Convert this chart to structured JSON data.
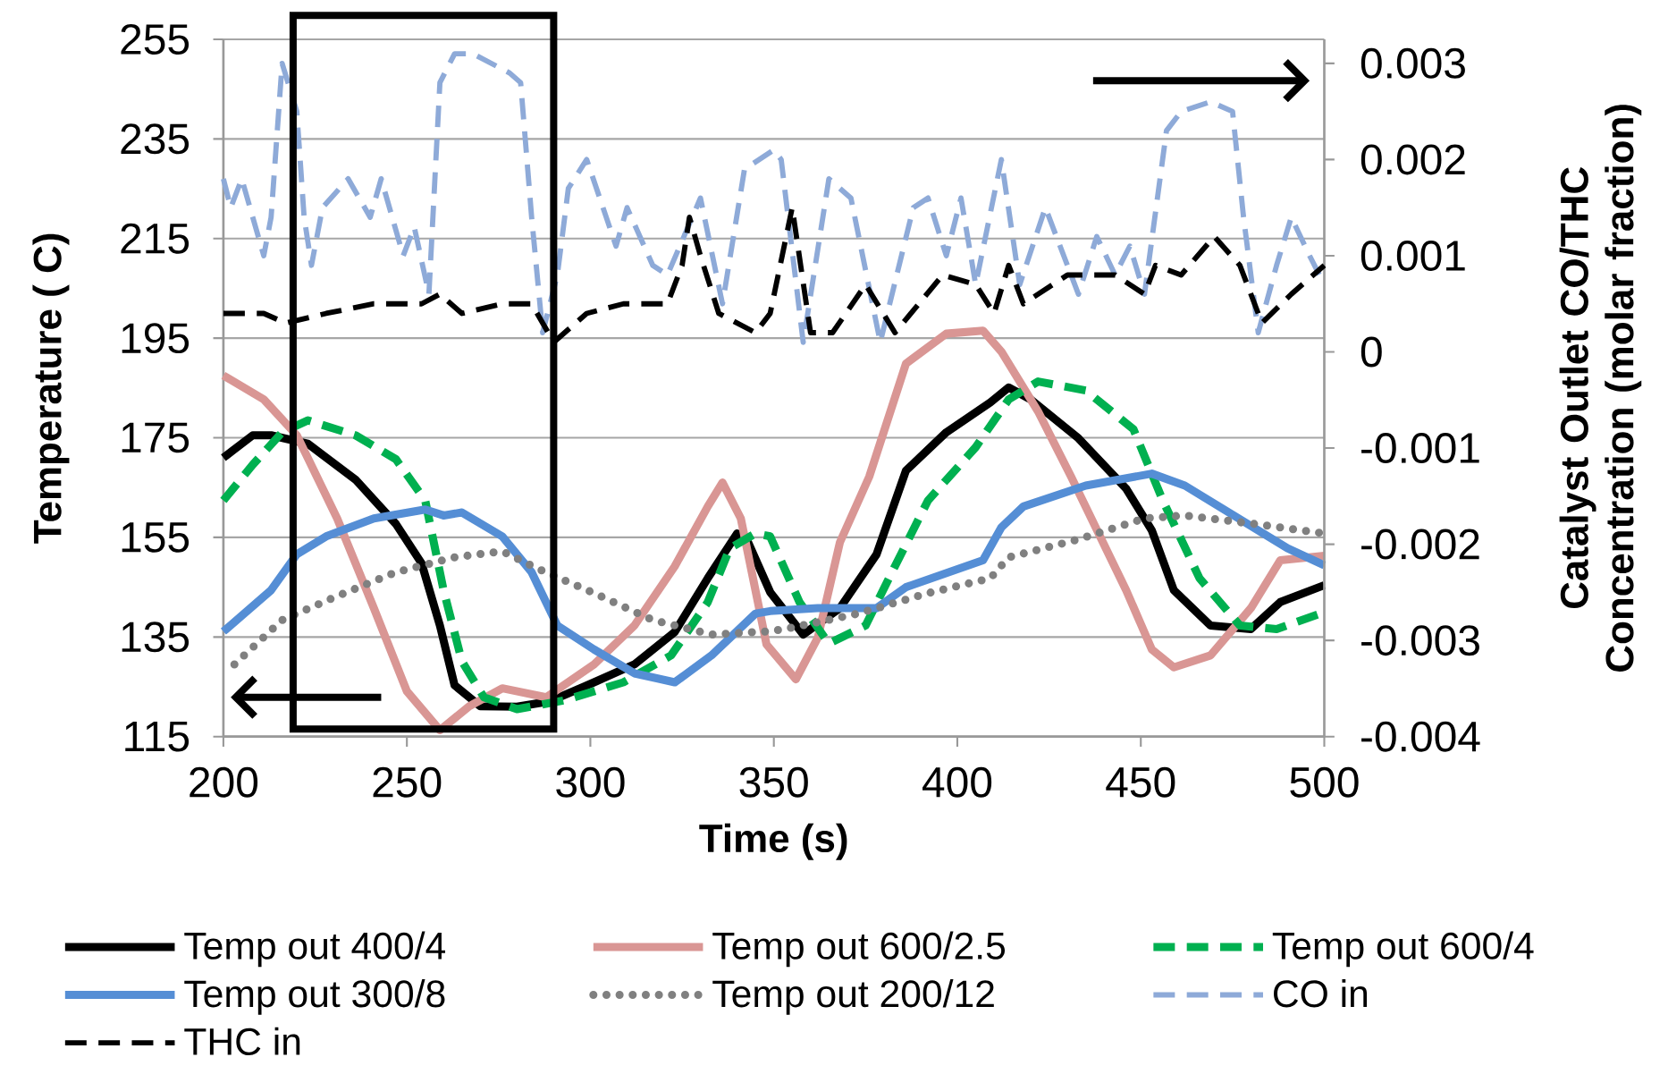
{
  "chart_data": {
    "type": "line",
    "xlabel": "Time (s)",
    "ylabel": "Temperature ( C)",
    "y2label": "Catalyst Outlet CO/THC Concentration (molar fraction)",
    "xlim": [
      200,
      500
    ],
    "xticks": [
      200,
      250,
      300,
      350,
      400,
      450,
      500
    ],
    "ylim": [
      115,
      255
    ],
    "yticks": [
      115,
      135,
      155,
      175,
      195,
      215,
      235,
      255
    ],
    "y2lim": [
      -0.004,
      0.00325
    ],
    "y2ticks": [
      -0.004,
      -0.003,
      -0.002,
      -0.001,
      0,
      0.001,
      0.002,
      0.003
    ],
    "grid": "y",
    "legend": "bottom",
    "series": [
      {
        "name": "Temp out 400/4",
        "color": "#000000",
        "line_style": "solid",
        "x": [
          200,
          208,
          213,
          223,
          236,
          247,
          254,
          259,
          263,
          270,
          280,
          289,
          301,
          312,
          323,
          332,
          340,
          343,
          349,
          358,
          368,
          378,
          386,
          397,
          409,
          414,
          420,
          433,
          446,
          453,
          459,
          469,
          480,
          488,
          500
        ],
        "values": [
          171,
          175.5,
          175.5,
          173.8,
          166.6,
          157.7,
          149.8,
          137.3,
          125.3,
          121.1,
          121,
          122.1,
          125.9,
          129.5,
          136,
          146.8,
          155.8,
          154,
          144,
          135.5,
          140.8,
          151.6,
          168.4,
          176.1,
          182.1,
          185.1,
          182.7,
          174.9,
          164.8,
          156.4,
          144.4,
          137.3,
          136.6,
          142,
          145.4
        ]
      },
      {
        "name": "Temp out 600/2.5",
        "color": "#d99694",
        "line_style": "solid",
        "x": [
          200,
          211,
          220,
          231,
          241,
          250,
          259,
          267,
          276,
          288,
          301,
          312,
          323,
          332,
          336,
          341,
          348,
          356,
          362,
          368,
          376,
          386,
          397,
          407,
          412,
          422,
          431,
          446,
          453,
          459,
          469,
          480,
          488,
          500
        ],
        "values": [
          187.5,
          182.7,
          175.5,
          158.8,
          140.8,
          124.1,
          116.3,
          121.1,
          124.7,
          122.9,
          129.5,
          137.3,
          149.2,
          161.2,
          166,
          158.8,
          133.5,
          126.5,
          134.9,
          154,
          167.2,
          189.9,
          195.9,
          196.5,
          192.3,
          180.3,
          167.2,
          144.4,
          132.5,
          128.9,
          131.3,
          140.8,
          150.4,
          151.3
        ]
      },
      {
        "name": "Temp out 600/4",
        "color": "#00b050",
        "line_style": "dashed",
        "x": [
          200,
          208,
          216,
          223,
          236,
          247,
          255,
          260,
          265,
          271,
          280,
          293,
          309,
          322,
          332,
          338,
          345,
          349,
          357,
          365,
          375,
          383,
          392,
          405,
          414,
          422,
          435,
          448,
          456,
          466,
          477,
          487,
          500
        ],
        "values": [
          162.4,
          169.6,
          176.1,
          178.5,
          175.5,
          170.7,
          162.4,
          144.4,
          130.1,
          122.9,
          120.5,
          122.3,
          125.9,
          131.3,
          142,
          152.8,
          155.8,
          155.2,
          142,
          133.7,
          137.3,
          149.2,
          162.4,
          173.1,
          182.7,
          186.3,
          184.5,
          176.7,
          162.4,
          146.8,
          137.3,
          136.6,
          140
        ]
      },
      {
        "name": "Temp out 300/8",
        "color": "#558ed5",
        "line_style": "solid",
        "x": [
          200,
          213,
          220,
          228,
          241,
          255,
          260,
          265,
          276,
          284,
          291,
          301,
          312,
          323,
          333,
          345,
          349,
          362,
          378,
          386,
          407,
          412,
          418,
          435,
          453,
          462,
          482,
          490,
          500
        ],
        "values": [
          136.1,
          144.4,
          151.6,
          155.2,
          158.8,
          160.6,
          159.4,
          160,
          155.2,
          148,
          137.3,
          132.5,
          127.7,
          125.9,
          131.3,
          139.7,
          140.2,
          140.8,
          140.8,
          145,
          150.4,
          157,
          161.2,
          165.4,
          167.8,
          165.4,
          156.4,
          152.8,
          149.4
        ]
      },
      {
        "name": "Temp out 200/12",
        "color": "#808080",
        "line_style": "dotted",
        "x": [
          203,
          216,
          231,
          247,
          263,
          276,
          286,
          301,
          317,
          333,
          348,
          353,
          373,
          392,
          409,
          414,
          433,
          451,
          462,
          482,
          500
        ],
        "values": [
          129.5,
          138.4,
          143.2,
          148,
          151,
          152.2,
          148.6,
          143.8,
          138.4,
          135.5,
          136.1,
          136.6,
          139.7,
          143.8,
          146.8,
          151,
          154.6,
          158.8,
          159.4,
          157.6,
          155.8
        ]
      },
      {
        "name": "CO in",
        "color": "#8eaad8",
        "line_style": "dashed",
        "axis": "y2",
        "x": [
          200,
          202,
          205,
          211,
          213,
          216,
          220,
          222,
          224,
          227,
          234,
          240,
          243,
          249,
          252,
          256,
          259,
          263,
          268,
          278,
          281,
          284,
          287,
          291,
          294,
          299,
          307,
          310,
          317,
          321,
          330,
          336,
          342,
          350,
          352,
          358,
          365,
          371,
          379,
          388,
          392,
          397,
          401,
          405,
          412,
          417,
          424,
          433,
          438,
          443,
          447,
          451,
          457,
          461,
          469,
          475,
          478,
          482,
          487,
          491,
          496,
          500
        ],
        "values": [
          0.0018,
          0.0015,
          0.0018,
          0.001,
          0.0014,
          0.003,
          0.0025,
          0.0014,
          0.0009,
          0.0015,
          0.0018,
          0.0014,
          0.0018,
          0.001,
          0.0013,
          0.0006,
          0.0028,
          0.0031,
          0.0031,
          0.0029,
          0.0028,
          0.0014,
          0.0002,
          0.0008,
          0.0017,
          0.002,
          0.0011,
          0.0015,
          0.0009,
          0.0008,
          0.0016,
          0.0005,
          0.0019,
          0.0021,
          0.002,
          0.0001,
          0.0018,
          0.0016,
          0.0001,
          0.0015,
          0.0016,
          0.001,
          0.0016,
          0.0007,
          0.002,
          0.0007,
          0.0015,
          0.0006,
          0.0012,
          0.0008,
          0.0011,
          0.0006,
          0.0023,
          0.0025,
          0.0026,
          0.0025,
          0.0014,
          0.0002,
          0.0009,
          0.0014,
          0.001,
          0.0007
        ]
      },
      {
        "name": "THC in",
        "color": "#000000",
        "line_style": "dashed",
        "axis": "y2",
        "x": [
          200,
          211,
          217,
          228,
          241,
          254,
          259,
          265,
          276,
          284,
          290,
          299,
          309,
          321,
          325,
          327,
          330,
          335,
          345,
          349,
          355,
          360,
          366,
          375,
          383,
          396,
          405,
          410,
          414,
          418,
          430,
          443,
          451,
          454,
          461,
          470,
          477,
          483,
          491,
          500
        ],
        "values": [
          0.0004,
          0.0004,
          0.0003,
          0.0004,
          0.0005,
          0.0005,
          0.0006,
          0.0004,
          0.0005,
          0.0005,
          0.0001,
          0.0004,
          0.0005,
          0.0005,
          0.0009,
          0.0014,
          0.001,
          0.0004,
          0.0002,
          0.0004,
          0.0015,
          0.0002,
          0.0002,
          0.0007,
          0.0002,
          0.0008,
          0.0007,
          0.0004,
          0.0009,
          0.0005,
          0.0008,
          0.0008,
          0.0006,
          0.0009,
          0.0008,
          0.0012,
          0.0009,
          0.0003,
          0.0006,
          0.0009
        ]
      }
    ]
  }
}
